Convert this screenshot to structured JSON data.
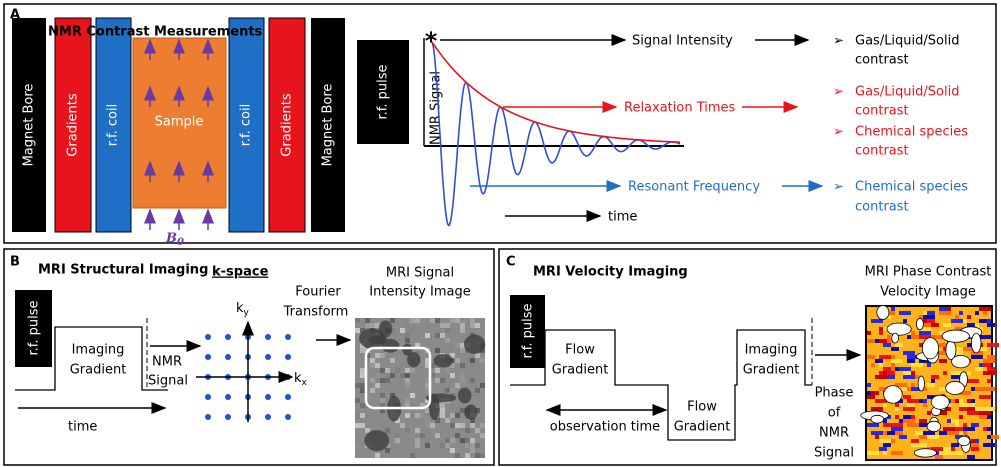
{
  "panel_a": {
    "label": "A",
    "title": "NMR Contrast Measurements",
    "hardware": [
      "Magnet Bore",
      "Gradients",
      "r.f. coil",
      "Sample",
      "r.f. coil",
      "Gradients",
      "Magnet Bore"
    ],
    "field": {
      "symbol": "B",
      "subscript": "0"
    },
    "pulse": "r.f. pulse",
    "signal_axis": "NMR Signal",
    "marker": "*",
    "time_axis": "time",
    "bullet": "➢",
    "rows": [
      {
        "label": "Signal Intensity",
        "outcomes": [
          [
            "Gas/Liquid/Solid",
            "contrast"
          ]
        ]
      },
      {
        "label": "Relaxation Times",
        "outcomes": [
          [
            "Gas/Liquid/Solid",
            "contrast"
          ],
          [
            "Chemical species",
            "contrast"
          ]
        ]
      },
      {
        "label": "Resonant Frequency",
        "outcomes": [
          [
            "Chemical species",
            "contrast"
          ]
        ]
      }
    ]
  },
  "panel_b": {
    "label": "B",
    "title": "MRI Structural Imaging",
    "kspace_title": "k-space",
    "image_title": [
      "MRI Signal",
      "Intensity Image"
    ],
    "pulse": "r.f. pulse",
    "gradient": [
      "Imaging",
      "Gradient"
    ],
    "signal": [
      "NMR",
      "Signal"
    ],
    "transform": [
      "Fourier",
      "Transform"
    ],
    "ky": {
      "symbol": "k",
      "subscript": "y"
    },
    "kx": {
      "symbol": "k",
      "subscript": "x"
    },
    "time_axis": "time"
  },
  "panel_c": {
    "label": "C",
    "title": "MRI Velocity Imaging",
    "image_title": [
      "MRI Phase Contrast",
      "Velocity Image"
    ],
    "pulse": "r.f. pulse",
    "flow_gradient_1": [
      "Flow",
      "Gradient"
    ],
    "flow_gradient_2": [
      "Flow",
      "Gradient"
    ],
    "imaging_gradient": [
      "Imaging",
      "Gradient"
    ],
    "observation": "observation time",
    "phase": [
      "Phase",
      "of",
      "NMR",
      "Signal"
    ]
  }
}
